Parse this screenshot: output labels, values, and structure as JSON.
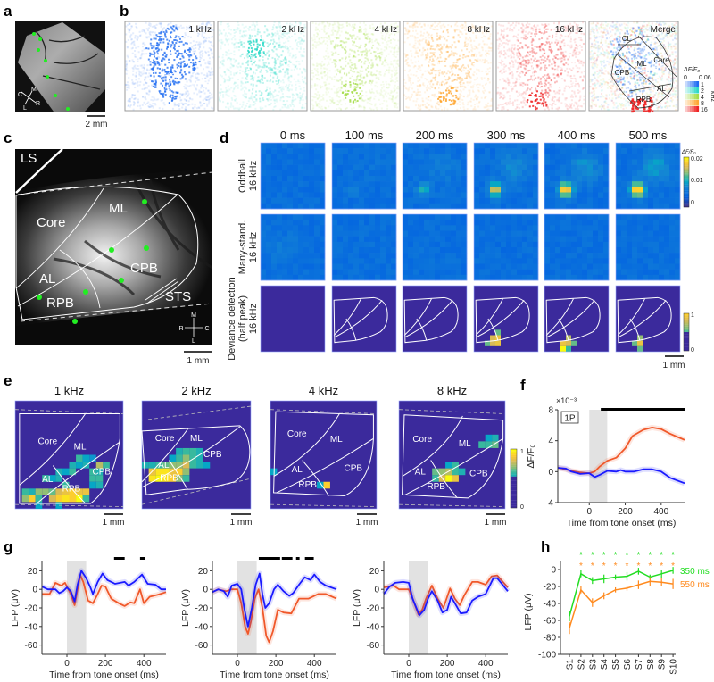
{
  "panel_labels": {
    "a": "a",
    "b": "b",
    "c": "c",
    "d": "d",
    "e": "e",
    "f": "f",
    "g": "g",
    "h": "h"
  },
  "a": {
    "scale_label": "2 mm",
    "compass": {
      "m": "M",
      "c": "C",
      "r": "R",
      "l": "L"
    }
  },
  "b": {
    "frequencies": [
      "1 kHz",
      "2 kHz",
      "4 kHz",
      "8 kHz",
      "16 kHz",
      "Merge"
    ],
    "colors": [
      "#1f6cf2",
      "#2fd9c8",
      "#a6dd4a",
      "#ffa733",
      "#ee2626"
    ],
    "region_labels": {
      "cl": "CL",
      "ml": "ML",
      "core": "Core",
      "cpb": "CPB",
      "al": "AL",
      "rpb": "RPB"
    },
    "legend": {
      "title": "ΔF/F₀",
      "min": "0",
      "max": "0.06",
      "levels": [
        "1",
        "2",
        "4",
        "8",
        "16"
      ],
      "unit": "kHz"
    }
  },
  "c": {
    "labels": {
      "ls": "LS",
      "core": "Core",
      "ml": "ML",
      "al": "AL",
      "rpb": "RPB",
      "cpb": "CPB",
      "sts": "STS"
    },
    "compass": {
      "m": "M",
      "r": "R",
      "c": "C",
      "l": "L"
    },
    "scale_label": "1 mm"
  },
  "d": {
    "times": [
      "0 ms",
      "100 ms",
      "200 ms",
      "300 ms",
      "400 ms",
      "500 ms"
    ],
    "rows": [
      [
        "Oddball",
        "16 kHz"
      ],
      [
        "Many-stand.",
        "16 kHz"
      ],
      [
        "Deviance detection",
        "(half peak)",
        "16 kHz"
      ]
    ],
    "colorbar_top": {
      "title": "ΔF/F₀",
      "ticks": [
        "0.02",
        "0.01",
        "0"
      ]
    },
    "colorbar_bottom": {
      "ticks": [
        "1",
        "0"
      ]
    },
    "scale_label": "1 mm"
  },
  "e": {
    "frequencies": [
      "1 kHz",
      "2 kHz",
      "4 kHz",
      "8 kHz"
    ],
    "region_labels": {
      "core": "Core",
      "ml": "ML",
      "al": "AL",
      "rpb": "RPB",
      "cpb": "CPB"
    },
    "colorbar": {
      "ticks": [
        "1",
        "0"
      ]
    },
    "scale_label": "1 mm"
  },
  "chart_data": [
    {
      "id": "f",
      "type": "line",
      "badge": "1P",
      "y_multiplier": "×10⁻³",
      "xlabel": "Time from tone onset (ms)",
      "ylabel": "ΔF/F₀",
      "xlim": [
        -175,
        530
      ],
      "ylim": [
        -4,
        8
      ],
      "xticks": [
        0,
        200,
        400
      ],
      "yticks": [
        -4,
        0,
        4,
        8
      ],
      "stimulus_window": [
        0,
        100
      ],
      "significance": [
        [
          64,
          530
        ]
      ],
      "series": [
        {
          "color": "#f0582a",
          "points": [
            [
              -175,
              0.5
            ],
            [
              -150,
              0.4
            ],
            [
              -100,
              0.1
            ],
            [
              -50,
              -0.1
            ],
            [
              0,
              -0.2
            ],
            [
              30,
              0.0
            ],
            [
              60,
              0.7
            ],
            [
              100,
              1.4
            ],
            [
              150,
              1.8
            ],
            [
              200,
              3.0
            ],
            [
              240,
              4.6
            ],
            [
              300,
              5.4
            ],
            [
              350,
              5.7
            ],
            [
              400,
              5.5
            ],
            [
              450,
              4.9
            ],
            [
              530,
              4.1
            ]
          ]
        },
        {
          "color": "#1a1aff",
          "points": [
            [
              -175,
              0.5
            ],
            [
              -130,
              0.4
            ],
            [
              -100,
              0.0
            ],
            [
              -50,
              -0.3
            ],
            [
              0,
              -0.2
            ],
            [
              30,
              -0.7
            ],
            [
              60,
              -0.4
            ],
            [
              100,
              0.1
            ],
            [
              150,
              0.0
            ],
            [
              175,
              0.2
            ],
            [
              200,
              0.0
            ],
            [
              250,
              0.0
            ],
            [
              300,
              0.3
            ],
            [
              350,
              0.3
            ],
            [
              400,
              0.0
            ],
            [
              450,
              -0.8
            ],
            [
              530,
              -1.5
            ]
          ]
        }
      ]
    },
    {
      "id": "g1",
      "type": "line",
      "xlabel": "Time from tone onset (ms)",
      "ylabel": "LFP (μV)",
      "xlim": [
        -130,
        515
      ],
      "ylim": [
        -70,
        30
      ],
      "xticks": [
        0,
        200,
        400
      ],
      "yticks": [
        20,
        0,
        -20,
        -40,
        -60
      ],
      "stimulus_window": [
        0,
        100
      ],
      "significance": [
        [
          245,
          300
        ],
        [
          380,
          405
        ]
      ],
      "series": [
        {
          "color": "#f0582a",
          "points": [
            [
              -130,
              -5
            ],
            [
              -90,
              -5
            ],
            [
              -60,
              7
            ],
            [
              -30,
              4
            ],
            [
              -10,
              7
            ],
            [
              0,
              3
            ],
            [
              20,
              -5
            ],
            [
              40,
              -17
            ],
            [
              55,
              0
            ],
            [
              70,
              15
            ],
            [
              85,
              8
            ],
            [
              110,
              -12
            ],
            [
              135,
              -15
            ],
            [
              160,
              -5
            ],
            [
              180,
              4
            ],
            [
              200,
              3
            ],
            [
              230,
              -10
            ],
            [
              270,
              -15
            ],
            [
              300,
              -18
            ],
            [
              330,
              -14
            ],
            [
              350,
              -15
            ],
            [
              380,
              0
            ],
            [
              400,
              -15
            ],
            [
              430,
              -8
            ],
            [
              470,
              -6
            ],
            [
              515,
              -3
            ]
          ]
        },
        {
          "color": "#1a1aff",
          "points": [
            [
              -130,
              3
            ],
            [
              -100,
              0
            ],
            [
              -60,
              0
            ],
            [
              -40,
              -4
            ],
            [
              -20,
              -2
            ],
            [
              0,
              2
            ],
            [
              20,
              -2
            ],
            [
              40,
              -13
            ],
            [
              55,
              5
            ],
            [
              75,
              20
            ],
            [
              100,
              12
            ],
            [
              120,
              3
            ],
            [
              135,
              -5
            ],
            [
              160,
              8
            ],
            [
              185,
              17
            ],
            [
              210,
              10
            ],
            [
              250,
              6
            ],
            [
              300,
              8
            ],
            [
              320,
              4
            ],
            [
              350,
              8
            ],
            [
              390,
              16
            ],
            [
              420,
              6
            ],
            [
              460,
              5
            ],
            [
              490,
              0
            ],
            [
              515,
              0
            ]
          ]
        }
      ]
    },
    {
      "id": "g2",
      "type": "line",
      "xlabel": "Time from tone onset (ms)",
      "ylabel": "LFP (μV)",
      "xlim": [
        -130,
        515
      ],
      "ylim": [
        -70,
        30
      ],
      "xticks": [
        0,
        200,
        400
      ],
      "yticks": [
        20,
        0,
        -20,
        -40,
        -60
      ],
      "stimulus_window": [
        0,
        100
      ],
      "significance": [
        [
          111,
          222
        ],
        [
          231,
          286
        ],
        [
          305,
          323
        ],
        [
          351,
          397
        ]
      ],
      "series": [
        {
          "color": "#f0582a",
          "points": [
            [
              -130,
              -3
            ],
            [
              -100,
              0
            ],
            [
              -60,
              -2
            ],
            [
              -30,
              0
            ],
            [
              0,
              0
            ],
            [
              20,
              -15
            ],
            [
              40,
              -40
            ],
            [
              55,
              -48
            ],
            [
              70,
              -35
            ],
            [
              90,
              -10
            ],
            [
              110,
              0
            ],
            [
              130,
              -20
            ],
            [
              150,
              -50
            ],
            [
              165,
              -57
            ],
            [
              185,
              -45
            ],
            [
              210,
              -22
            ],
            [
              240,
              -25
            ],
            [
              280,
              -26
            ],
            [
              320,
              -10
            ],
            [
              370,
              -10
            ],
            [
              420,
              -5
            ],
            [
              460,
              -5
            ],
            [
              515,
              -10
            ]
          ]
        },
        {
          "color": "#1a1aff",
          "points": [
            [
              -130,
              -3
            ],
            [
              -100,
              0
            ],
            [
              -70,
              -2
            ],
            [
              -50,
              -8
            ],
            [
              -30,
              4
            ],
            [
              0,
              6
            ],
            [
              20,
              0
            ],
            [
              35,
              -20
            ],
            [
              55,
              -40
            ],
            [
              75,
              -20
            ],
            [
              95,
              5
            ],
            [
              115,
              17
            ],
            [
              130,
              -5
            ],
            [
              145,
              -20
            ],
            [
              165,
              -15
            ],
            [
              190,
              0
            ],
            [
              210,
              5
            ],
            [
              240,
              -2
            ],
            [
              270,
              -7
            ],
            [
              290,
              -4
            ],
            [
              320,
              5
            ],
            [
              350,
              13
            ],
            [
              380,
              10
            ],
            [
              400,
              16
            ],
            [
              430,
              8
            ],
            [
              460,
              4
            ],
            [
              515,
              0
            ]
          ]
        }
      ]
    },
    {
      "id": "g3",
      "type": "line",
      "xlabel": "Time from tone onset (ms)",
      "ylabel": "LFP (μV)",
      "xlim": [
        -130,
        515
      ],
      "ylim": [
        -70,
        30
      ],
      "xticks": [
        0,
        200,
        400
      ],
      "yticks": [
        20,
        0,
        -20,
        -40,
        -60
      ],
      "stimulus_window": [
        0,
        100
      ],
      "significance": [],
      "series": [
        {
          "color": "#f0582a",
          "points": [
            [
              -130,
              2
            ],
            [
              -80,
              4
            ],
            [
              -50,
              0
            ],
            [
              0,
              0
            ],
            [
              20,
              -10
            ],
            [
              50,
              -27
            ],
            [
              70,
              -22
            ],
            [
              90,
              -10
            ],
            [
              120,
              4
            ],
            [
              150,
              -10
            ],
            [
              180,
              -20
            ],
            [
              215,
              1
            ],
            [
              240,
              -10
            ],
            [
              265,
              -17
            ],
            [
              290,
              -6
            ],
            [
              330,
              8
            ],
            [
              360,
              8
            ],
            [
              400,
              5
            ],
            [
              430,
              14
            ],
            [
              460,
              15
            ],
            [
              515,
              2
            ]
          ]
        },
        {
          "color": "#1a1aff",
          "points": [
            [
              -130,
              -5
            ],
            [
              -100,
              3
            ],
            [
              -70,
              7
            ],
            [
              -30,
              8
            ],
            [
              0,
              7
            ],
            [
              20,
              -10
            ],
            [
              55,
              -28
            ],
            [
              80,
              -22
            ],
            [
              100,
              -10
            ],
            [
              120,
              -2
            ],
            [
              150,
              -12
            ],
            [
              175,
              -25
            ],
            [
              200,
              -22
            ],
            [
              220,
              -8
            ],
            [
              240,
              -15
            ],
            [
              270,
              -26
            ],
            [
              300,
              -25
            ],
            [
              330,
              -12
            ],
            [
              360,
              -8
            ],
            [
              400,
              -5
            ],
            [
              440,
              12
            ],
            [
              460,
              12
            ],
            [
              515,
              -2
            ]
          ]
        }
      ]
    },
    {
      "id": "h",
      "type": "line",
      "ylabel": "LFP (μV)",
      "categories": [
        "S1",
        "S2",
        "S3",
        "S4",
        "S5",
        "S6",
        "S7",
        "S8",
        "S9",
        "S10"
      ],
      "ylim": [
        -100,
        0
      ],
      "yticks": [
        0,
        -20,
        -40,
        -60,
        -80,
        -100
      ],
      "significance_marker": "*",
      "significant_categories": [
        "S2",
        "S3",
        "S4",
        "S5",
        "S6",
        "S7",
        "S8",
        "S9",
        "S10"
      ],
      "series": [
        {
          "name": "350 ms",
          "color": "#22dd22",
          "values": [
            -55,
            -5,
            -13,
            -11,
            -9,
            -8,
            -2,
            -9,
            -5,
            -1
          ],
          "errors": [
            6,
            4,
            4,
            5,
            3,
            5,
            4,
            3,
            5,
            4
          ]
        },
        {
          "name": "550 ms",
          "color": "#ff8a1e",
          "values": [
            -69,
            -24,
            -39,
            -31,
            -24,
            -22,
            -18,
            -14,
            -15,
            -17
          ],
          "errors": [
            7,
            4,
            5,
            4,
            3,
            3,
            5,
            5,
            5,
            6
          ]
        }
      ]
    }
  ]
}
